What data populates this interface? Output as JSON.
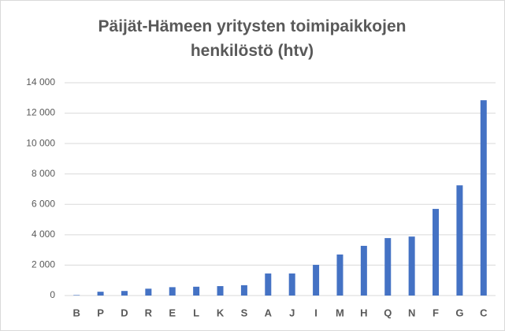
{
  "chart_data": {
    "type": "bar",
    "title": "Päijät-Hämeen yritysten toimipaikkojen henkilöstö (htv)",
    "categories": [
      "B",
      "P",
      "D",
      "R",
      "E",
      "L",
      "K",
      "S",
      "A",
      "J",
      "I",
      "M",
      "H",
      "Q",
      "N",
      "F",
      "G",
      "C"
    ],
    "values": [
      30,
      250,
      300,
      450,
      550,
      580,
      620,
      680,
      1450,
      1450,
      2020,
      2700,
      3270,
      3780,
      3880,
      5700,
      7250,
      12850
    ],
    "color": "#4472c4",
    "ylim": [
      0,
      14000
    ],
    "yticks": [
      0,
      {
        "value": 2000,
        "label": "2 000"
      },
      {
        "value": 4000,
        "label": "4 000"
      },
      {
        "value": 6000,
        "label": "6 000"
      },
      {
        "value": 8000,
        "label": "8 000"
      },
      {
        "value": 10000,
        "label": "10 000"
      },
      {
        "value": 12000,
        "label": "12 000"
      },
      {
        "value": 14000,
        "label": "14 000"
      }
    ],
    "grid": true
  }
}
